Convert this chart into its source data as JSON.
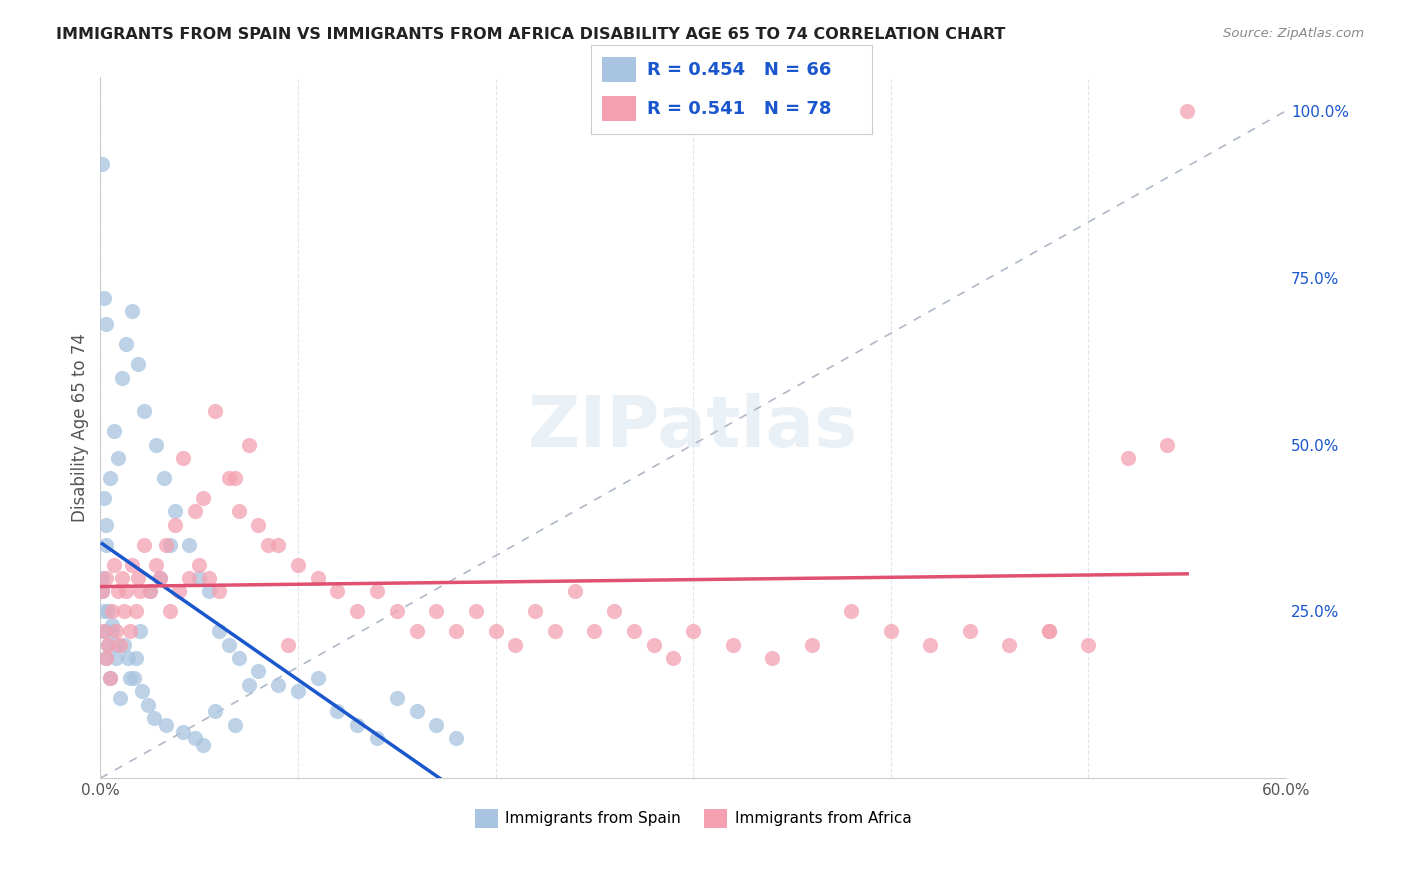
{
  "title": "IMMIGRANTS FROM SPAIN VS IMMIGRANTS FROM AFRICA DISABILITY AGE 65 TO 74 CORRELATION CHART",
  "source": "Source: ZipAtlas.com",
  "xlabel_bottom": "",
  "ylabel": "Disability Age 65 to 74",
  "x_min": 0.0,
  "x_max": 0.6,
  "y_min": 0.0,
  "y_max": 1.05,
  "x_ticks": [
    0.0,
    0.1,
    0.2,
    0.3,
    0.4,
    0.5,
    0.6
  ],
  "x_tick_labels": [
    "0.0%",
    "",
    "",
    "",
    "",
    "",
    "60.0%"
  ],
  "y_ticks_right": [
    0.0,
    0.25,
    0.5,
    0.75,
    1.0
  ],
  "y_tick_labels_right": [
    "",
    "25.0%",
    "50.0%",
    "75.0%",
    "100.0%"
  ],
  "spain_R": 0.454,
  "spain_N": 66,
  "africa_R": 0.541,
  "africa_N": 78,
  "spain_color": "#a8c4e0",
  "africa_color": "#f4a0b0",
  "spain_line_color": "#1a56cc",
  "africa_line_color": "#e05070",
  "legend_text_color": "#1a56cc",
  "diagonal_color": "#b0b8c8",
  "watermark": "ZIPatlas",
  "spain_x": [
    0.001,
    0.002,
    0.003,
    0.001,
    0.002,
    0.004,
    0.005,
    0.006,
    0.003,
    0.008,
    0.01,
    0.012,
    0.015,
    0.018,
    0.02,
    0.025,
    0.03,
    0.035,
    0.002,
    0.003,
    0.005,
    0.007,
    0.009,
    0.011,
    0.013,
    0.016,
    0.019,
    0.022,
    0.028,
    0.032,
    0.038,
    0.045,
    0.05,
    0.055,
    0.06,
    0.065,
    0.07,
    0.08,
    0.09,
    0.1,
    0.11,
    0.12,
    0.13,
    0.14,
    0.15,
    0.16,
    0.17,
    0.18,
    0.001,
    0.002,
    0.003,
    0.004,
    0.006,
    0.008,
    0.014,
    0.017,
    0.021,
    0.024,
    0.027,
    0.033,
    0.042,
    0.048,
    0.052,
    0.058,
    0.068,
    0.075
  ],
  "spain_y": [
    0.28,
    0.22,
    0.18,
    0.3,
    0.25,
    0.2,
    0.15,
    0.22,
    0.35,
    0.18,
    0.12,
    0.2,
    0.15,
    0.18,
    0.22,
    0.28,
    0.3,
    0.35,
    0.42,
    0.38,
    0.45,
    0.52,
    0.48,
    0.6,
    0.65,
    0.7,
    0.62,
    0.55,
    0.5,
    0.45,
    0.4,
    0.35,
    0.3,
    0.28,
    0.22,
    0.2,
    0.18,
    0.16,
    0.14,
    0.13,
    0.15,
    0.1,
    0.08,
    0.06,
    0.12,
    0.1,
    0.08,
    0.06,
    0.92,
    0.72,
    0.68,
    0.25,
    0.23,
    0.2,
    0.18,
    0.15,
    0.13,
    0.11,
    0.09,
    0.08,
    0.07,
    0.06,
    0.05,
    0.1,
    0.08,
    0.14
  ],
  "africa_x": [
    0.001,
    0.002,
    0.003,
    0.004,
    0.005,
    0.006,
    0.008,
    0.01,
    0.012,
    0.015,
    0.018,
    0.02,
    0.025,
    0.03,
    0.035,
    0.04,
    0.045,
    0.05,
    0.055,
    0.06,
    0.065,
    0.07,
    0.08,
    0.09,
    0.1,
    0.11,
    0.12,
    0.13,
    0.14,
    0.15,
    0.16,
    0.17,
    0.18,
    0.19,
    0.2,
    0.21,
    0.22,
    0.23,
    0.24,
    0.25,
    0.26,
    0.27,
    0.28,
    0.29,
    0.3,
    0.32,
    0.34,
    0.36,
    0.38,
    0.4,
    0.42,
    0.44,
    0.46,
    0.48,
    0.5,
    0.52,
    0.54,
    0.003,
    0.007,
    0.009,
    0.011,
    0.013,
    0.016,
    0.019,
    0.022,
    0.028,
    0.033,
    0.038,
    0.042,
    0.048,
    0.052,
    0.058,
    0.068,
    0.075,
    0.085,
    0.095,
    0.48,
    0.55
  ],
  "africa_y": [
    0.28,
    0.22,
    0.18,
    0.2,
    0.15,
    0.25,
    0.22,
    0.2,
    0.25,
    0.22,
    0.25,
    0.28,
    0.28,
    0.3,
    0.25,
    0.28,
    0.3,
    0.32,
    0.3,
    0.28,
    0.45,
    0.4,
    0.38,
    0.35,
    0.32,
    0.3,
    0.28,
    0.25,
    0.28,
    0.25,
    0.22,
    0.25,
    0.22,
    0.25,
    0.22,
    0.2,
    0.25,
    0.22,
    0.28,
    0.22,
    0.25,
    0.22,
    0.2,
    0.18,
    0.22,
    0.2,
    0.18,
    0.2,
    0.25,
    0.22,
    0.2,
    0.22,
    0.2,
    0.22,
    0.2,
    0.48,
    0.5,
    0.3,
    0.32,
    0.28,
    0.3,
    0.28,
    0.32,
    0.3,
    0.35,
    0.32,
    0.35,
    0.38,
    0.48,
    0.4,
    0.42,
    0.55,
    0.45,
    0.5,
    0.35,
    0.2,
    0.22,
    1.0
  ]
}
